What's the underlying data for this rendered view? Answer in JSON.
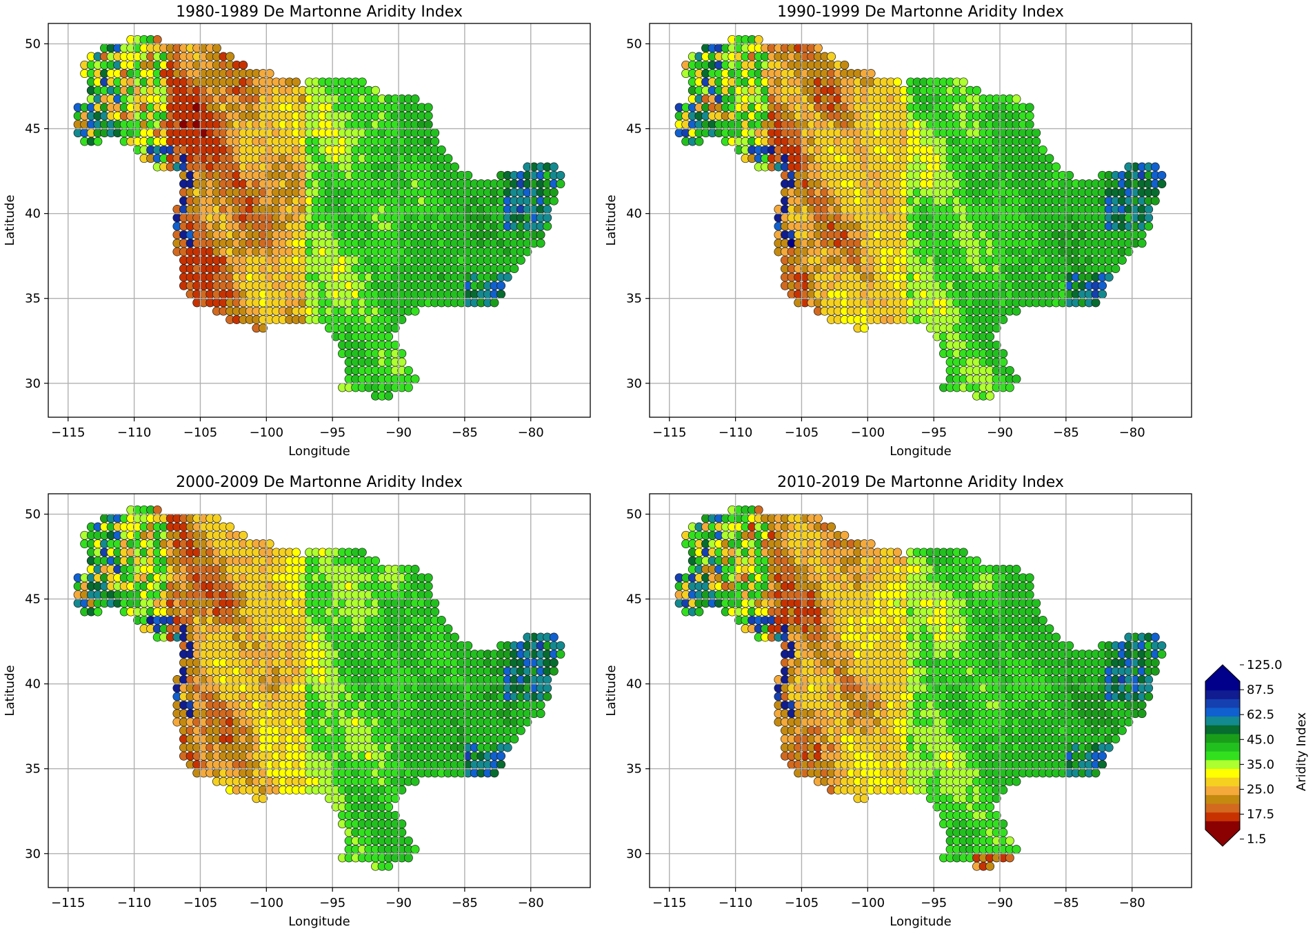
{
  "chart_data": [
    {
      "type": "scatter",
      "title": "1980-1989 De Martonne Aridity Index",
      "xlabel": "Longitude",
      "ylabel": "Latitude",
      "xlim": [
        -116.5,
        -75.5
      ],
      "ylim": [
        28,
        51.2
      ],
      "xticks": [
        "-115",
        "-110",
        "-105",
        "-100",
        "-95",
        "-90",
        "-85",
        "-80"
      ],
      "yticks": [
        "30",
        "35",
        "40",
        "45",
        "50"
      ],
      "grid": true,
      "variant": 0
    },
    {
      "type": "scatter",
      "title": "1990-1999 De Martonne Aridity Index",
      "xlabel": "Longitude",
      "ylabel": "Latitude",
      "xlim": [
        -116.5,
        -75.5
      ],
      "ylim": [
        28,
        51.2
      ],
      "xticks": [
        "-115",
        "-110",
        "-105",
        "-100",
        "-95",
        "-90",
        "-85",
        "-80"
      ],
      "yticks": [
        "30",
        "35",
        "40",
        "45",
        "50"
      ],
      "grid": true,
      "variant": 1
    },
    {
      "type": "scatter",
      "title": "2000-2009 De Martonne Aridity Index",
      "xlabel": "Longitude",
      "ylabel": "Latitude",
      "xlim": [
        -116.5,
        -75.5
      ],
      "ylim": [
        28,
        51.2
      ],
      "xticks": [
        "-115",
        "-110",
        "-105",
        "-100",
        "-95",
        "-90",
        "-85",
        "-80"
      ],
      "yticks": [
        "30",
        "35",
        "40",
        "45",
        "50"
      ],
      "grid": true,
      "variant": 2
    },
    {
      "type": "scatter",
      "title": "2010-2019 De Martonne Aridity Index",
      "xlabel": "Longitude",
      "ylabel": "Latitude",
      "xlim": [
        -116.5,
        -75.5
      ],
      "ylim": [
        28,
        51.2
      ],
      "xticks": [
        "-115",
        "-110",
        "-105",
        "-100",
        "-95",
        "-90",
        "-85",
        "-80"
      ],
      "yticks": [
        "30",
        "35",
        "40",
        "45",
        "50"
      ],
      "grid": true,
      "variant": 3
    }
  ],
  "colorbar": {
    "label": "Aridity Index",
    "ticks": [
      "125.0",
      "87.5",
      "62.5",
      "45.0",
      "35.0",
      "25.0",
      "17.5",
      "1.5"
    ],
    "colors": [
      "#8b0000",
      "#c83200",
      "#d2691e",
      "#c48a10",
      "#f4a93a",
      "#f5d020",
      "#ffff00",
      "#adff2f",
      "#32e01e",
      "#22c01e",
      "#1a9e1a",
      "#066c2f",
      "#138a90",
      "#1060d0",
      "#1540b0",
      "#101c90",
      "#00008b"
    ],
    "extend": "both"
  }
}
